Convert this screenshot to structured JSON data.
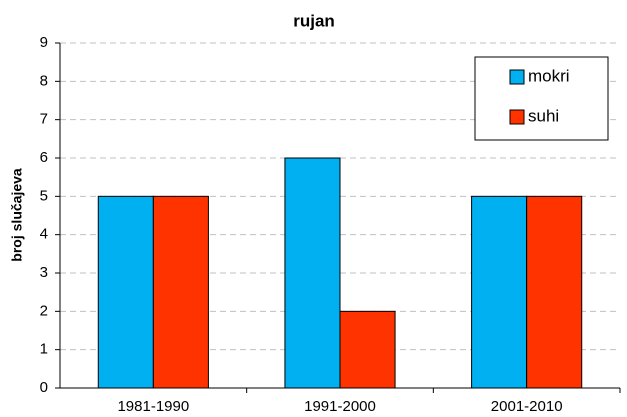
{
  "chart_data": {
    "type": "bar",
    "title": "rujan",
    "y_label": "broj slučajeva",
    "categories": [
      "1981-1990",
      "1991-2000",
      "2001-2010"
    ],
    "series": [
      {
        "name": "mokri",
        "color": "#00b0f0",
        "values": [
          5,
          6,
          5
        ]
      },
      {
        "name": "suhi",
        "color": "#ff3300",
        "values": [
          5,
          2,
          5
        ]
      }
    ],
    "ylim": [
      0,
      9
    ],
    "yticks": [
      0,
      1,
      2,
      3,
      4,
      5,
      6,
      7,
      8,
      9
    ],
    "grid": true,
    "legend": "upper-right"
  }
}
